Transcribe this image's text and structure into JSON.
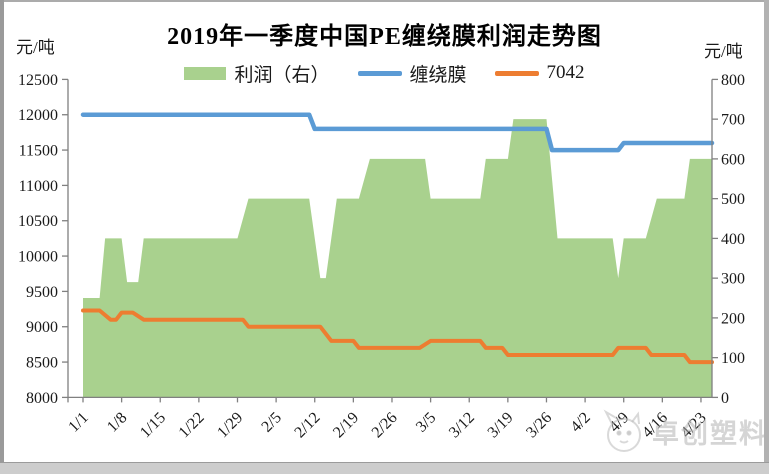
{
  "title": "2019年一季度中国PE缠绕膜利润走势图",
  "left_axis_unit": "元/吨",
  "right_axis_unit": "元/吨",
  "watermark": {
    "text": "卓创塑料",
    "logo": "zhuochuang-mascot-logo"
  },
  "legend": [
    {
      "label": "利润（右）",
      "swatch": "area",
      "color": "#a9d18e"
    },
    {
      "label": "缠绕膜",
      "swatch": "line",
      "color": "#5b9bd5"
    },
    {
      "label": "7042",
      "swatch": "line",
      "color": "#ed7d31"
    }
  ],
  "colors": {
    "profit_area": "#a9d18e",
    "wrap_film_line": "#5b9bd5",
    "line_7042": "#ed7d31",
    "axis": "#808080",
    "frame_border": "#9a9a9a"
  },
  "chart_data": {
    "type": "area+line",
    "title": "2019年一季度中国PE缠绕膜利润走势图",
    "grid": false,
    "legend_position": "top-center",
    "x_start_date": "1/1",
    "x_tick_labels": [
      "1/1",
      "1/8",
      "1/15",
      "1/22",
      "1/29",
      "2/5",
      "2/12",
      "2/19",
      "2/26",
      "3/5",
      "3/12",
      "3/19",
      "3/26",
      "4/2",
      "4/9",
      "4/16",
      "4/23"
    ],
    "x_tick_day_offsets": [
      0,
      7,
      14,
      21,
      28,
      35,
      42,
      49,
      56,
      63,
      70,
      77,
      84,
      91,
      98,
      105,
      112
    ],
    "x_total_days": 114,
    "left_axis": {
      "unit": "元/吨",
      "min": 8000,
      "max": 12500,
      "step": 500
    },
    "right_axis": {
      "unit": "元/吨",
      "min": 0,
      "max": 800,
      "step": 100
    },
    "series": [
      {
        "name": "利润（右）",
        "type": "area",
        "axis": "right",
        "color": "#a9d18e",
        "points": [
          [
            0,
            250
          ],
          [
            3,
            250
          ],
          [
            4,
            400
          ],
          [
            7,
            400
          ],
          [
            8,
            290
          ],
          [
            10,
            290
          ],
          [
            11,
            400
          ],
          [
            28,
            400
          ],
          [
            30,
            500
          ],
          [
            41,
            500
          ],
          [
            43,
            300
          ],
          [
            44,
            300
          ],
          [
            46,
            500
          ],
          [
            50,
            500
          ],
          [
            52,
            600
          ],
          [
            62,
            600
          ],
          [
            63,
            500
          ],
          [
            72,
            500
          ],
          [
            73,
            600
          ],
          [
            77,
            600
          ],
          [
            78,
            700
          ],
          [
            84,
            700
          ],
          [
            86,
            400
          ],
          [
            96,
            400
          ],
          [
            97,
            300
          ],
          [
            98,
            400
          ],
          [
            102,
            400
          ],
          [
            104,
            500
          ],
          [
            109,
            500
          ],
          [
            110,
            600
          ],
          [
            114,
            600
          ]
        ]
      },
      {
        "name": "缠绕膜",
        "type": "line",
        "axis": "left",
        "color": "#5b9bd5",
        "stroke_width": 4.5,
        "points": [
          [
            0,
            12000
          ],
          [
            41,
            12000
          ],
          [
            42,
            11800
          ],
          [
            84,
            11800
          ],
          [
            85,
            11500
          ],
          [
            97,
            11500
          ],
          [
            98,
            11600
          ],
          [
            114,
            11600
          ]
        ]
      },
      {
        "name": "7042",
        "type": "line",
        "axis": "left",
        "color": "#ed7d31",
        "stroke_width": 4,
        "points": [
          [
            0,
            9230
          ],
          [
            3,
            9230
          ],
          [
            5,
            9100
          ],
          [
            6,
            9100
          ],
          [
            7,
            9200
          ],
          [
            9,
            9200
          ],
          [
            11,
            9100
          ],
          [
            29,
            9100
          ],
          [
            30,
            9000
          ],
          [
            43,
            9000
          ],
          [
            45,
            8800
          ],
          [
            49,
            8800
          ],
          [
            50,
            8700
          ],
          [
            61,
            8700
          ],
          [
            63,
            8800
          ],
          [
            72,
            8800
          ],
          [
            73,
            8700
          ],
          [
            76,
            8700
          ],
          [
            77,
            8600
          ],
          [
            96,
            8600
          ],
          [
            97,
            8700
          ],
          [
            102,
            8700
          ],
          [
            103,
            8600
          ],
          [
            109,
            8600
          ],
          [
            110,
            8500
          ],
          [
            114,
            8500
          ]
        ]
      }
    ]
  }
}
